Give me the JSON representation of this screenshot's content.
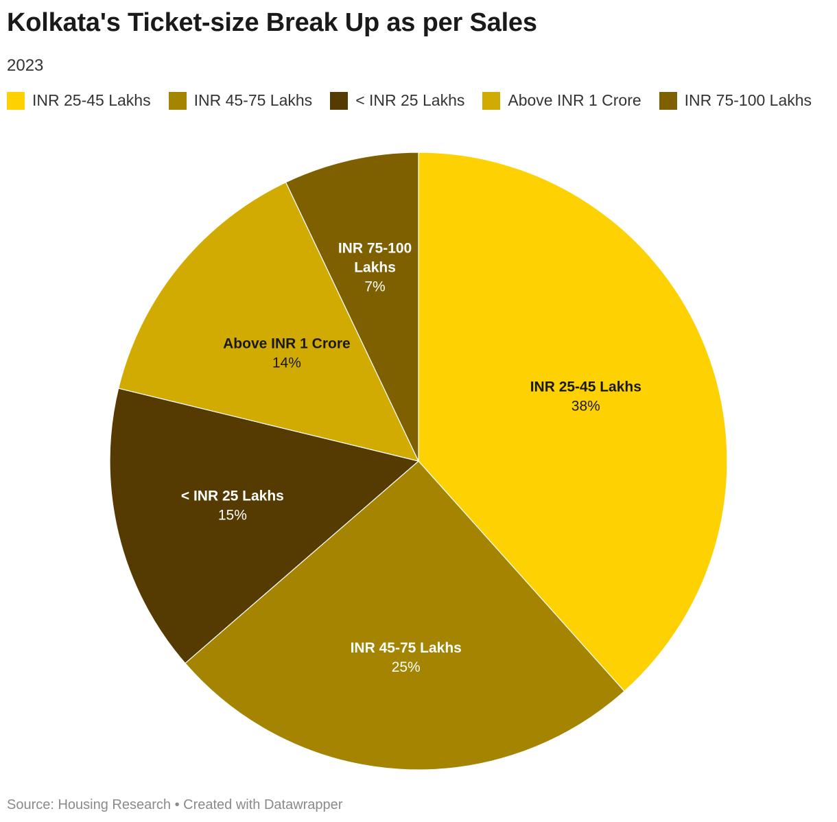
{
  "title": "Kolkata's Ticket-size Break Up as per Sales",
  "subtitle": "2023",
  "footer": "Source: Housing Research • Created with Datawrapper",
  "chart_data": {
    "type": "pie",
    "title": "Kolkata's Ticket-size Break Up as per Sales",
    "subtitle": "2023",
    "legend_position": "top",
    "slices": [
      {
        "label": "INR 25-45 Lakhs",
        "value": 38,
        "display": "38%",
        "color": "#fed202",
        "text_color": "#1a1a1a"
      },
      {
        "label": "INR 45-75 Lakhs",
        "value": 25,
        "display": "25%",
        "color": "#a48401",
        "text_color": "#ffffff"
      },
      {
        "label": "< INR 25 Lakhs",
        "value": 15,
        "display": "15%",
        "color": "#553b01",
        "text_color": "#ffffff"
      },
      {
        "label": "Above INR 1 Crore",
        "value": 14,
        "display": "14%",
        "color": "#d1ab01",
        "text_color": "#1a1a1a"
      },
      {
        "label": "INR 75-100 Lakhs",
        "value": 7,
        "display": "7%",
        "color": "#7e6001",
        "text_color": "#ffffff"
      }
    ]
  }
}
